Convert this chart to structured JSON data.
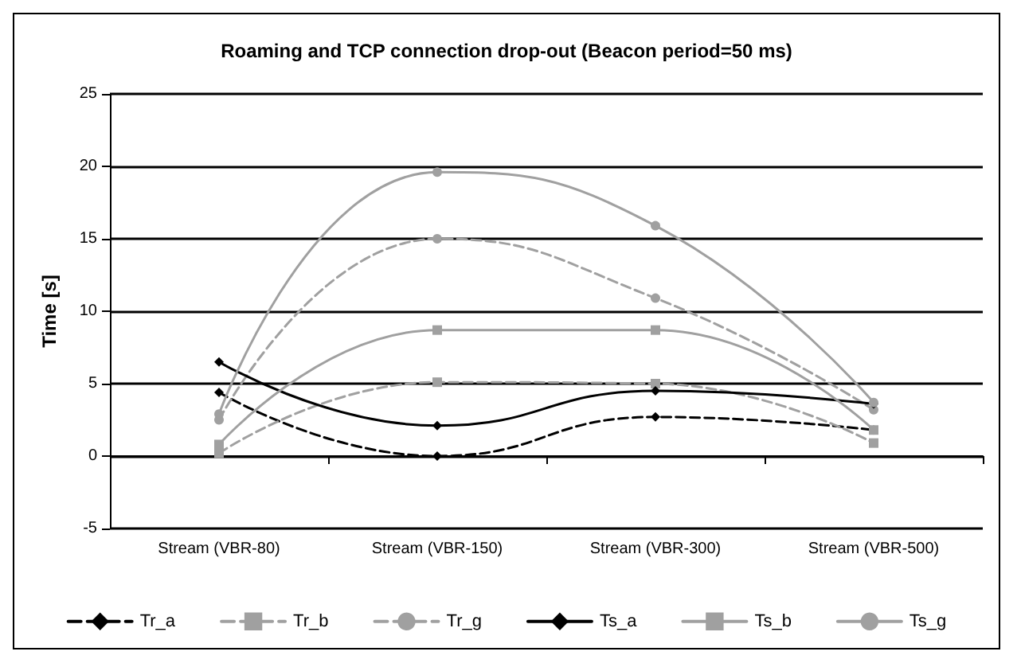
{
  "chart_data": {
    "type": "line",
    "title": "Roaming and TCP connection drop-out (Beacon period=50 ms)",
    "ylabel": "Time [s]",
    "categories": [
      "Stream (VBR-80)",
      "Stream (VBR-150)",
      "Stream (VBR-300)",
      "Stream (VBR-500)"
    ],
    "ylim": [
      -5,
      25
    ],
    "yticks": [
      -5,
      0,
      5,
      10,
      15,
      20,
      25
    ],
    "grid": "y",
    "legend": "bottom",
    "series": [
      {
        "name": "Tr_a",
        "color": "#000000",
        "marker": "diamond",
        "line_style": "dashed",
        "values": [
          4.4,
          0,
          2.7,
          1.8
        ]
      },
      {
        "name": "Tr_b",
        "color": "#a0a0a0",
        "marker": "square",
        "line_style": "dashed",
        "values": [
          0.2,
          5.1,
          5,
          0.9
        ]
      },
      {
        "name": "Tr_g",
        "color": "#a0a0a0",
        "marker": "circle",
        "line_style": "dashed",
        "values": [
          2.5,
          15,
          10.9,
          3.2
        ]
      },
      {
        "name": "Ts_a",
        "color": "#000000",
        "marker": "diamond",
        "line_style": "solid",
        "values": [
          6.5,
          2.1,
          4.5,
          3.6
        ]
      },
      {
        "name": "Ts_b",
        "color": "#a0a0a0",
        "marker": "square",
        "line_style": "solid",
        "values": [
          0.8,
          8.7,
          8.7,
          1.8
        ]
      },
      {
        "name": "Ts_g",
        "color": "#a0a0a0",
        "marker": "circle",
        "line_style": "solid",
        "values": [
          2.9,
          19.6,
          15.9,
          3.7
        ]
      }
    ]
  }
}
